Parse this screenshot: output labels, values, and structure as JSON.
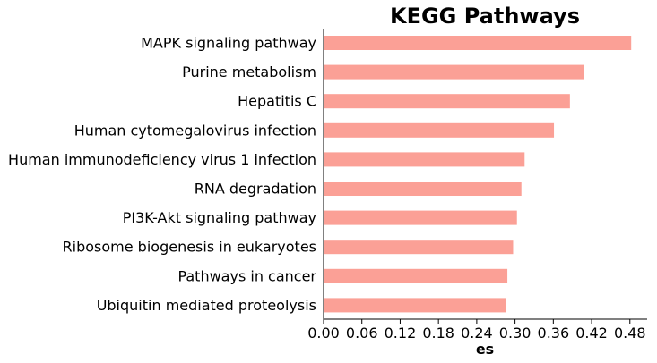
{
  "chart_data": {
    "type": "bar",
    "orientation": "horizontal",
    "title": "KEGG Pathways",
    "xlabel": "es",
    "ylabel": "",
    "xlim": [
      0,
      0.507
    ],
    "xticks": [
      "0.00",
      "0.06",
      "0.12",
      "0.18",
      "0.24",
      "0.30",
      "0.36",
      "0.42",
      "0.48"
    ],
    "categories": [
      "MAPK signaling pathway",
      "Purine metabolism",
      "Hepatitis C",
      "Human cytomegalovirus infection",
      "Human immunodeficiency virus 1 infection",
      "RNA degradation",
      "PI3K-Akt signaling pathway",
      "Ribosome biogenesis in eukaryotes",
      "Pathways in cancer",
      "Ubiquitin mediated proteolysis"
    ],
    "values": [
      0.482,
      0.408,
      0.386,
      0.361,
      0.315,
      0.31,
      0.303,
      0.297,
      0.288,
      0.286
    ],
    "bar_color": "#fba096",
    "grid": false,
    "legend": "none"
  }
}
